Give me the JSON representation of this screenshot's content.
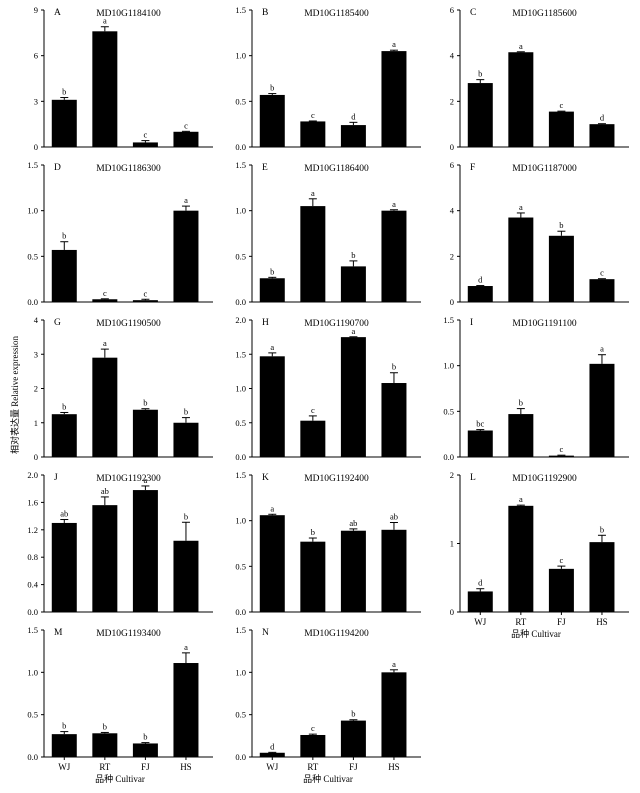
{
  "figure": {
    "y_label": "相对表达量 Relative expression",
    "x_label": "品种  Cultivar"
  },
  "chart_data": [
    {
      "type": "bar",
      "panel": "A",
      "title": "MD10G1184100",
      "categories": [
        "WJ",
        "RT",
        "FJ",
        "HS"
      ],
      "values": [
        3.1,
        7.6,
        0.3,
        1.0
      ],
      "errors": [
        0.15,
        0.3,
        0.12,
        0.03
      ],
      "letters": [
        "b",
        "a",
        "c",
        "c"
      ],
      "ylim": [
        0,
        9
      ],
      "yticks": [
        0,
        3,
        6,
        9
      ]
    },
    {
      "type": "bar",
      "panel": "B",
      "title": "MD10G1185400",
      "categories": [
        "WJ",
        "RT",
        "FJ",
        "HS"
      ],
      "values": [
        0.57,
        0.28,
        0.24,
        1.05
      ],
      "errors": [
        0.015,
        0.005,
        0.03,
        0.01
      ],
      "letters": [
        "b",
        "c",
        "d",
        "a"
      ],
      "ylim": [
        0,
        1.5
      ],
      "yticks": [
        0,
        0.5,
        1.0,
        1.5
      ]
    },
    {
      "type": "bar",
      "panel": "C",
      "title": "MD10G1185600",
      "categories": [
        "WJ",
        "RT",
        "FJ",
        "HS"
      ],
      "values": [
        2.8,
        4.15,
        1.55,
        1.0
      ],
      "errors": [
        0.15,
        0.02,
        0.02,
        0.02
      ],
      "letters": [
        "b",
        "a",
        "c",
        "d"
      ],
      "ylim": [
        0,
        6
      ],
      "yticks": [
        0,
        2,
        4,
        6
      ]
    },
    {
      "type": "bar",
      "panel": "D",
      "title": "MD10G1186300",
      "categories": [
        "WJ",
        "RT",
        "FJ",
        "HS"
      ],
      "values": [
        0.57,
        0.03,
        0.02,
        1.0
      ],
      "errors": [
        0.09,
        0.005,
        0.01,
        0.05
      ],
      "letters": [
        "b",
        "c",
        "c",
        "a"
      ],
      "ylim": [
        0,
        1.5
      ],
      "yticks": [
        0,
        0.5,
        1.0,
        1.5
      ]
    },
    {
      "type": "bar",
      "panel": "E",
      "title": "MD10G1186400",
      "categories": [
        "WJ",
        "RT",
        "FJ",
        "HS"
      ],
      "values": [
        0.26,
        1.05,
        0.39,
        1.0
      ],
      "errors": [
        0.01,
        0.08,
        0.06,
        0.01
      ],
      "letters": [
        "b",
        "a",
        "b",
        "a"
      ],
      "ylim": [
        0,
        1.5
      ],
      "yticks": [
        0,
        0.5,
        1.0,
        1.5
      ]
    },
    {
      "type": "bar",
      "panel": "F",
      "title": "MD10G1187000",
      "categories": [
        "WJ",
        "RT",
        "FJ",
        "HS"
      ],
      "values": [
        0.7,
        3.7,
        2.9,
        1.0
      ],
      "errors": [
        0.02,
        0.2,
        0.2,
        0.02
      ],
      "letters": [
        "d",
        "a",
        "b",
        "c"
      ],
      "ylim": [
        0,
        6
      ],
      "yticks": [
        0,
        2,
        4,
        6
      ]
    },
    {
      "type": "bar",
      "panel": "G",
      "title": "MD10G1190500",
      "categories": [
        "WJ",
        "RT",
        "FJ",
        "HS"
      ],
      "values": [
        1.25,
        2.9,
        1.38,
        1.0
      ],
      "errors": [
        0.05,
        0.25,
        0.03,
        0.15
      ],
      "letters": [
        "b",
        "a",
        "b",
        "b"
      ],
      "ylim": [
        0,
        4
      ],
      "yticks": [
        0,
        1,
        2,
        3,
        4
      ]
    },
    {
      "type": "bar",
      "panel": "H",
      "title": "MD10G1190700",
      "categories": [
        "WJ",
        "RT",
        "FJ",
        "HS"
      ],
      "values": [
        1.47,
        0.53,
        1.75,
        1.08
      ],
      "errors": [
        0.05,
        0.07,
        0.005,
        0.15
      ],
      "letters": [
        "a",
        "c",
        "a",
        "b"
      ],
      "ylim": [
        0,
        2.0
      ],
      "yticks": [
        0,
        0.5,
        1.0,
        1.5,
        2.0
      ]
    },
    {
      "type": "bar",
      "panel": "I",
      "title": "MD10G1191100",
      "categories": [
        "WJ",
        "RT",
        "FJ",
        "HS"
      ],
      "values": [
        0.29,
        0.47,
        0.015,
        1.02
      ],
      "errors": [
        0.01,
        0.06,
        0.005,
        0.1
      ],
      "letters": [
        "bc",
        "b",
        "c",
        "a"
      ],
      "ylim": [
        0,
        1.5
      ],
      "yticks": [
        0,
        0.5,
        1.0,
        1.5
      ]
    },
    {
      "type": "bar",
      "panel": "J",
      "title": "MD10G1192300",
      "categories": [
        "WJ",
        "RT",
        "FJ",
        "HS"
      ],
      "values": [
        1.3,
        1.56,
        1.78,
        1.04
      ],
      "errors": [
        0.05,
        0.12,
        0.06,
        0.27
      ],
      "letters": [
        "ab",
        "ab",
        "a",
        "b"
      ],
      "ylim": [
        0,
        2.0
      ],
      "yticks": [
        0,
        0.4,
        0.8,
        1.2,
        1.6,
        2.0
      ]
    },
    {
      "type": "bar",
      "panel": "K",
      "title": "MD10G1192400",
      "categories": [
        "WJ",
        "RT",
        "FJ",
        "HS"
      ],
      "values": [
        1.06,
        0.77,
        0.89,
        0.9
      ],
      "errors": [
        0.01,
        0.04,
        0.02,
        0.08
      ],
      "letters": [
        "a",
        "b",
        "ab",
        "ab"
      ],
      "ylim": [
        0,
        1.5
      ],
      "yticks": [
        0,
        0.5,
        1.0,
        1.5
      ]
    },
    {
      "type": "bar",
      "panel": "L",
      "title": "MD10G1192900",
      "categories": [
        "WJ",
        "RT",
        "FJ",
        "HS"
      ],
      "values": [
        0.3,
        1.55,
        0.63,
        1.02
      ],
      "errors": [
        0.04,
        0.01,
        0.04,
        0.1
      ],
      "letters": [
        "d",
        "a",
        "c",
        "b"
      ],
      "ylim": [
        0,
        2
      ],
      "yticks": [
        0,
        1,
        2
      ]
    },
    {
      "type": "bar",
      "panel": "M",
      "title": "MD10G1193400",
      "categories": [
        "WJ",
        "RT",
        "FJ",
        "HS"
      ],
      "values": [
        0.27,
        0.28,
        0.16,
        1.11
      ],
      "errors": [
        0.03,
        0.01,
        0.01,
        0.12
      ],
      "letters": [
        "b",
        "b",
        "b",
        "a"
      ],
      "ylim": [
        0,
        1.5
      ],
      "yticks": [
        0,
        0.5,
        1.0,
        1.5
      ]
    },
    {
      "type": "bar",
      "panel": "N",
      "title": "MD10G1194200",
      "categories": [
        "WJ",
        "RT",
        "FJ",
        "HS"
      ],
      "values": [
        0.05,
        0.26,
        0.43,
        1.0
      ],
      "errors": [
        0.005,
        0.01,
        0.01,
        0.03
      ],
      "letters": [
        "d",
        "c",
        "b",
        "a"
      ],
      "ylim": [
        0,
        1.5
      ],
      "yticks": [
        0,
        0.5,
        1.0,
        1.5
      ]
    }
  ]
}
